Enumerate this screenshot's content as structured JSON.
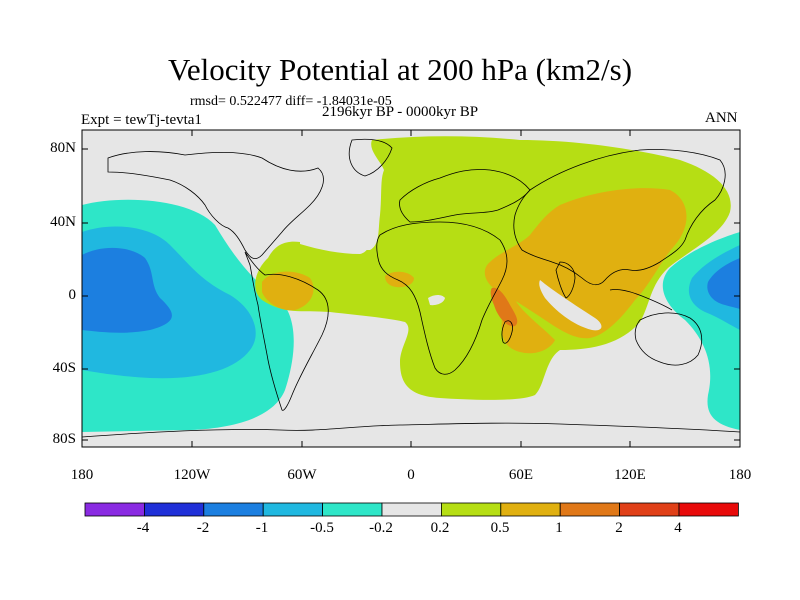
{
  "title": "Velocity Potential at 200 hPa (km2/s)",
  "stats_line": "rmsd= 0.522477  diff= -1.84031e-05",
  "experiment": "Expt = tewTj-tevta1",
  "period": "2196kyr BP - 0000kyr BP",
  "season": "ANN",
  "lat_labels": [
    "80N",
    "40N",
    "0",
    "40S",
    "80S"
  ],
  "lon_labels": [
    "180",
    "120W",
    "60W",
    "0",
    "60E",
    "120E",
    "180"
  ],
  "colorbar": {
    "labels": [
      "-4",
      "-2",
      "-1",
      "-0.5",
      "-0.2",
      "0.2",
      "0.5",
      "1",
      "2",
      "4"
    ],
    "colors": [
      "#8a2be2",
      "#2030d8",
      "#1c7fe0",
      "#20b8e0",
      "#2ee6c8",
      "#e6e6e6",
      "#b6de14",
      "#e0b010",
      "#e07818",
      "#e04018",
      "#e80a0a"
    ]
  },
  "colors": {
    "background_field": "#e6e6e6",
    "coast": "#000000"
  }
}
